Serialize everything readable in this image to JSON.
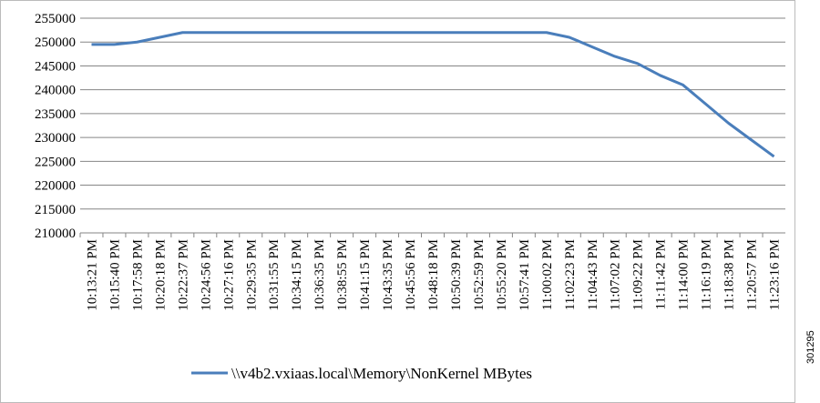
{
  "chart_data": {
    "type": "line",
    "categories": [
      "10:13:21 PM",
      "10:15:40 PM",
      "10:17:58 PM",
      "10:20:18 PM",
      "10:22:37 PM",
      "10:24:56 PM",
      "10:27:16 PM",
      "10:29:35 PM",
      "10:31:55 PM",
      "10:34:15 PM",
      "10:36:35 PM",
      "10:38:55 PM",
      "10:41:15 PM",
      "10:43:35 PM",
      "10:45:56 PM",
      "10:48:18 PM",
      "10:50:39 PM",
      "10:52:59 PM",
      "10:55:20 PM",
      "10:57:41 PM",
      "11:00:02 PM",
      "11:02:23 PM",
      "11:04:43 PM",
      "11:07:02 PM",
      "11:09:22 PM",
      "11:11:42 PM",
      "11:14:00 PM",
      "11:16:19 PM",
      "11:18:38 PM",
      "11:20:57 PM",
      "11:23:16 PM"
    ],
    "series": [
      {
        "name": "\\\\v4b2.vxiaas.local\\Memory\\NonKernel MBytes",
        "color": "#4a7ebb",
        "values": [
          249500,
          249500,
          250000,
          251000,
          252000,
          252000,
          252000,
          252000,
          252000,
          252000,
          252000,
          252000,
          252000,
          252000,
          252000,
          252000,
          252000,
          252000,
          252000,
          252000,
          252000,
          251000,
          249000,
          247000,
          245500,
          243000,
          241000,
          237000,
          233000,
          229500,
          226000
        ]
      }
    ],
    "ylim": [
      210000,
      255000
    ],
    "yticks": [
      210000,
      215000,
      220000,
      225000,
      230000,
      235000,
      240000,
      245000,
      250000,
      255000
    ],
    "grid": true,
    "legend": "bottom"
  },
  "figure_id": "301295"
}
